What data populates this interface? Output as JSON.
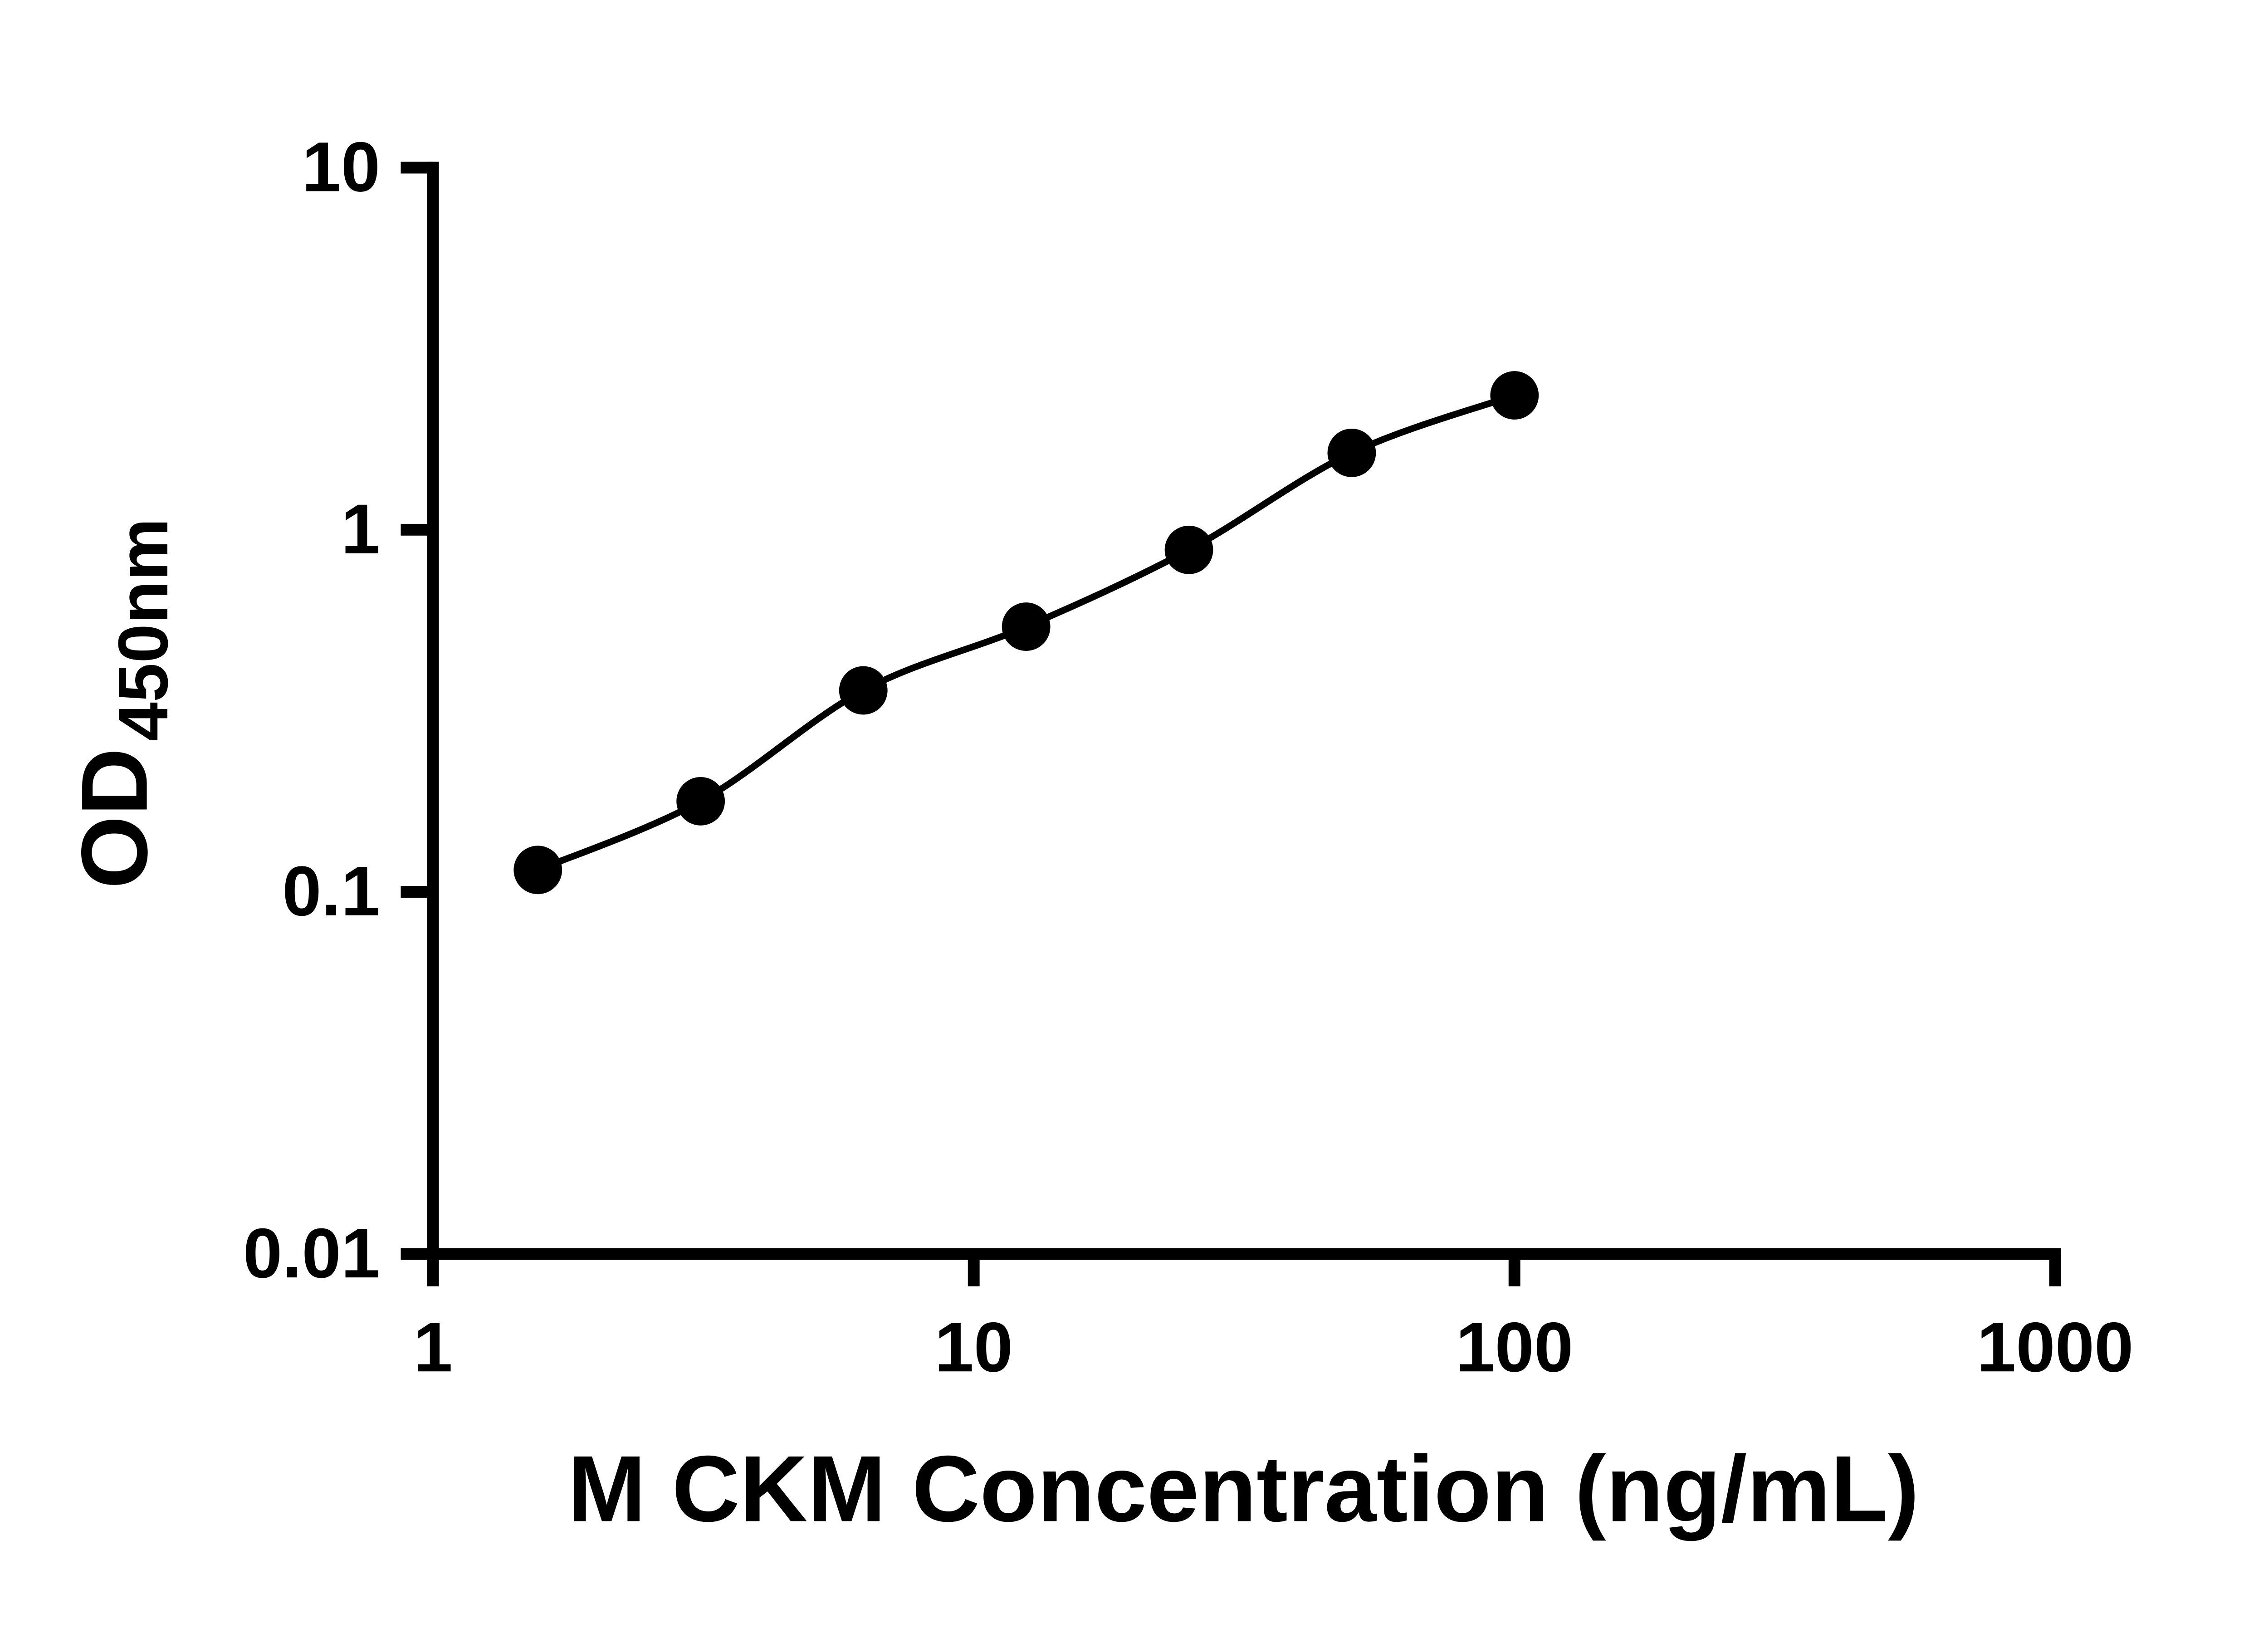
{
  "figure": {
    "description_title": "",
    "background_color": "#ffffff"
  },
  "chart_data": {
    "type": "scatter",
    "title": "",
    "xlabel": "M CKM Concentration (ng/mL)",
    "ylabel_main": "OD",
    "ylabel_sub": "450nm",
    "x_scale": "log",
    "y_scale": "log",
    "xlim": [
      1,
      1000
    ],
    "ylim": [
      0.01,
      10
    ],
    "x_ticks": [
      1,
      10,
      100,
      1000
    ],
    "x_tick_labels": [
      "1",
      "10",
      "100",
      "1000"
    ],
    "y_ticks": [
      10,
      1,
      0.1,
      0.01
    ],
    "y_tick_labels": [
      "10",
      "1",
      "0.1",
      "0.01"
    ],
    "grid": false,
    "legend": false,
    "colors": {
      "axis": "#000000",
      "marker": "#000000",
      "curve": "#000000",
      "background": "#ffffff"
    },
    "series": [
      {
        "marker": "filled-circle",
        "color": "#000000",
        "fit": "smooth-curve",
        "x": [
          1.5625,
          3.125,
          6.25,
          12.5,
          25,
          50,
          100
        ],
        "y": [
          0.115,
          0.178,
          0.36,
          0.54,
          0.88,
          1.63,
          2.35
        ]
      }
    ]
  }
}
